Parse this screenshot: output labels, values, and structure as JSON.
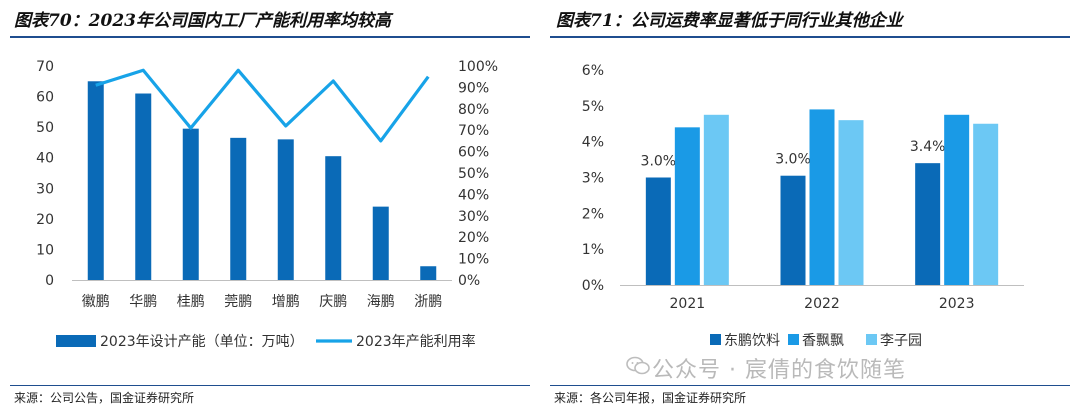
{
  "left": {
    "title": "图表70：2023年公司国内工厂产能利用率均较高",
    "source": "来源：公司公告，国金证券研究所"
  },
  "right": {
    "title": "图表71：公司运费率显著低于同行业其他企业",
    "source": "来源：各公司年报，国金证券研究所"
  },
  "watermark": "公众号 · 宸倩的食饮随笔",
  "colors": {
    "dark_blue": "#0a6ab7",
    "mid_blue": "#1a9ae6",
    "light_blue": "#6cc8f4",
    "line_blue": "#17a3e8",
    "rule": "#1f4e8f"
  },
  "chart_data": [
    {
      "type": "bar",
      "categories": [
        "徽鹏",
        "华鹏",
        "桂鹏",
        "莞鹏",
        "增鹏",
        "庆鹏",
        "海鹏",
        "浙鹏"
      ],
      "series": [
        {
          "name": "2023年设计产能（单位：万吨）",
          "kind": "bar",
          "axis": "left",
          "values": [
            65,
            61,
            49.5,
            46.5,
            46,
            40.5,
            24,
            4.5
          ]
        },
        {
          "name": "2023年产能利用率",
          "kind": "line",
          "axis": "right",
          "values": [
            91,
            98,
            71,
            98,
            72,
            93,
            65,
            95
          ]
        }
      ],
      "ylim": [
        0,
        70
      ],
      "y_ticks": [
        0,
        10,
        20,
        30,
        40,
        50,
        60,
        70
      ],
      "y2lim": [
        0,
        100
      ],
      "y2_ticks": [
        "0%",
        "10%",
        "20%",
        "30%",
        "40%",
        "50%",
        "60%",
        "70%",
        "80%",
        "90%",
        "100%"
      ],
      "legend": "bottom",
      "grid": false
    },
    {
      "type": "bar",
      "categories": [
        "2021",
        "2022",
        "2023"
      ],
      "series": [
        {
          "name": "东鹏饮料",
          "values": [
            3.0,
            3.05,
            3.4
          ],
          "labels": [
            "3.0%",
            "3.0%",
            "3.4%"
          ]
        },
        {
          "name": "香飘飘",
          "values": [
            4.4,
            4.9,
            4.75
          ],
          "labels": [
            "",
            "",
            ""
          ]
        },
        {
          "name": "李子园",
          "values": [
            4.75,
            4.6,
            4.5
          ],
          "labels": [
            "",
            "",
            ""
          ]
        }
      ],
      "ylim": [
        0,
        6
      ],
      "y_ticks": [
        "0%",
        "1%",
        "2%",
        "3%",
        "4%",
        "5%",
        "6%"
      ],
      "legend": "bottom",
      "grid": false
    }
  ]
}
